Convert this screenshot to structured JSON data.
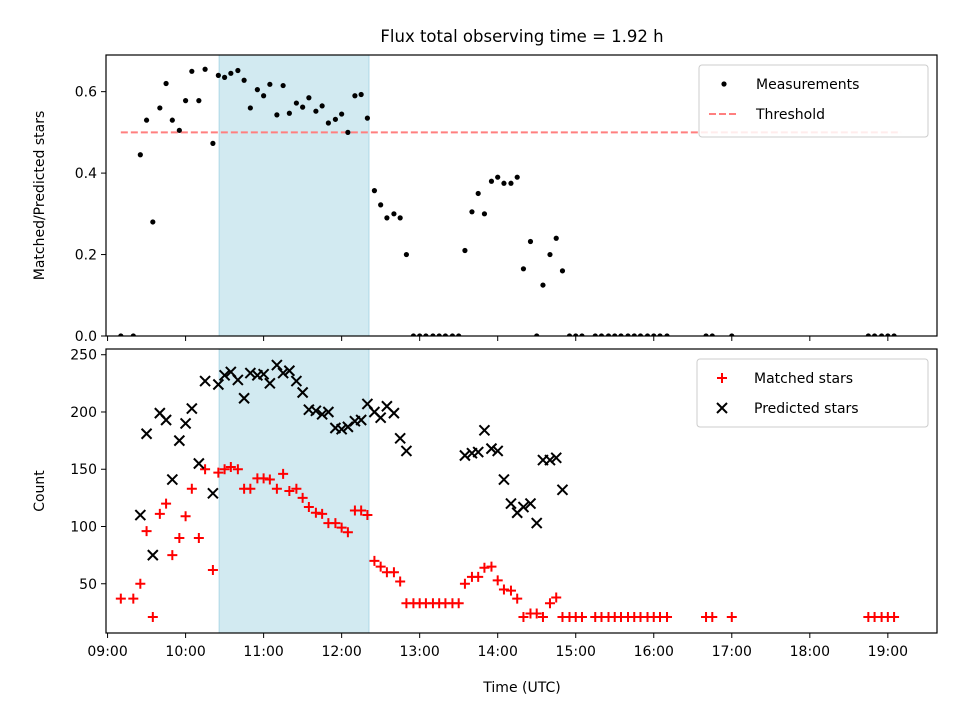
{
  "figure_title": "Flux total observing time = 1.92 h",
  "colors": {
    "span": "#add8e6",
    "measurements": "#000000",
    "threshold": "#ff7f7f",
    "matched": "#ff0000",
    "predicted": "#000000"
  },
  "x_axis": {
    "label": "Time (UTC)",
    "ticks": [
      {
        "t": 9,
        "label": "09:00"
      },
      {
        "t": 10,
        "label": "10:00"
      },
      {
        "t": 11,
        "label": "11:00"
      },
      {
        "t": 12,
        "label": "12:00"
      },
      {
        "t": 13,
        "label": "13:00"
      },
      {
        "t": 14,
        "label": "14:00"
      },
      {
        "t": 15,
        "label": "15:00"
      },
      {
        "t": 16,
        "label": "16:00"
      },
      {
        "t": 17,
        "label": "17:00"
      },
      {
        "t": 18,
        "label": "18:00"
      },
      {
        "t": 19,
        "label": "19:00"
      }
    ],
    "xlim": [
      8.98,
      19.63
    ]
  },
  "highlight_span": {
    "start": 10.43,
    "end": 12.35
  },
  "chart_data": [
    {
      "type": "scatter",
      "ylabel": "Matched/Predicted stars",
      "ylim": [
        0,
        0.69
      ],
      "yticks": [
        0.0,
        0.2,
        0.4,
        0.6
      ],
      "ytick_labels": [
        "0.0",
        "0.2",
        "0.4",
        "0.6"
      ],
      "legend_position": "top-right",
      "threshold": {
        "name": "Threshold",
        "value": 0.5,
        "x_range": [
          9.17,
          19.17
        ]
      },
      "series": [
        {
          "name": "Measurements",
          "points": [
            [
              9.17,
              0.0
            ],
            [
              9.33,
              0.0
            ],
            [
              9.42,
              0.445
            ],
            [
              9.5,
              0.53
            ],
            [
              9.58,
              0.28
            ],
            [
              9.67,
              0.56
            ],
            [
              9.75,
              0.62
            ],
            [
              9.83,
              0.53
            ],
            [
              9.92,
              0.505
            ],
            [
              10.0,
              0.578
            ],
            [
              10.08,
              0.65
            ],
            [
              10.17,
              0.578
            ],
            [
              10.25,
              0.655
            ],
            [
              10.35,
              0.473
            ],
            [
              10.42,
              0.64
            ],
            [
              10.5,
              0.635
            ],
            [
              10.58,
              0.645
            ],
            [
              10.67,
              0.652
            ],
            [
              10.75,
              0.628
            ],
            [
              10.83,
              0.56
            ],
            [
              10.92,
              0.605
            ],
            [
              11.0,
              0.59
            ],
            [
              11.08,
              0.618
            ],
            [
              11.17,
              0.543
            ],
            [
              11.25,
              0.615
            ],
            [
              11.33,
              0.547
            ],
            [
              11.42,
              0.572
            ],
            [
              11.5,
              0.562
            ],
            [
              11.58,
              0.585
            ],
            [
              11.67,
              0.552
            ],
            [
              11.75,
              0.565
            ],
            [
              11.83,
              0.523
            ],
            [
              11.92,
              0.532
            ],
            [
              12.0,
              0.545
            ],
            [
              12.08,
              0.5
            ],
            [
              12.17,
              0.59
            ],
            [
              12.25,
              0.593
            ],
            [
              12.33,
              0.535
            ],
            [
              12.42,
              0.357
            ],
            [
              12.5,
              0.322
            ],
            [
              12.58,
              0.29
            ],
            [
              12.67,
              0.3
            ],
            [
              12.75,
              0.29
            ],
            [
              12.83,
              0.2
            ],
            [
              12.92,
              0.0
            ],
            [
              13.0,
              0.0
            ],
            [
              13.08,
              0.0
            ],
            [
              13.17,
              0.0
            ],
            [
              13.25,
              0.0
            ],
            [
              13.33,
              0.0
            ],
            [
              13.42,
              0.0
            ],
            [
              13.5,
              0.0
            ],
            [
              13.58,
              0.21
            ],
            [
              13.67,
              0.305
            ],
            [
              13.75,
              0.35
            ],
            [
              13.83,
              0.3
            ],
            [
              13.92,
              0.38
            ],
            [
              14.0,
              0.39
            ],
            [
              14.08,
              0.375
            ],
            [
              14.17,
              0.375
            ],
            [
              14.25,
              0.39
            ],
            [
              14.33,
              0.165
            ],
            [
              14.42,
              0.232
            ],
            [
              14.5,
              0.0
            ],
            [
              14.58,
              0.125
            ],
            [
              14.67,
              0.2
            ],
            [
              14.75,
              0.24
            ],
            [
              14.83,
              0.16
            ],
            [
              14.92,
              0.0
            ],
            [
              15.0,
              0.0
            ],
            [
              15.08,
              0.0
            ],
            [
              15.25,
              0.0
            ],
            [
              15.33,
              0.0
            ],
            [
              15.42,
              0.0
            ],
            [
              15.5,
              0.0
            ],
            [
              15.58,
              0.0
            ],
            [
              15.67,
              0.0
            ],
            [
              15.75,
              0.0
            ],
            [
              15.83,
              0.0
            ],
            [
              15.92,
              0.0
            ],
            [
              16.0,
              0.0
            ],
            [
              16.08,
              0.0
            ],
            [
              16.17,
              0.0
            ],
            [
              16.67,
              0.0
            ],
            [
              16.75,
              0.0
            ],
            [
              17.0,
              0.0
            ],
            [
              18.75,
              0.0
            ],
            [
              18.83,
              0.0
            ],
            [
              18.92,
              0.0
            ],
            [
              19.0,
              0.0
            ],
            [
              19.08,
              0.0
            ]
          ]
        }
      ]
    },
    {
      "type": "scatter",
      "ylabel": "Count",
      "ylim": [
        7,
        255
      ],
      "yticks": [
        50,
        100,
        150,
        200,
        250
      ],
      "ytick_labels": [
        "50",
        "100",
        "150",
        "200",
        "250"
      ],
      "legend_position": "top-right",
      "series": [
        {
          "name": "Matched stars",
          "marker": "plus",
          "points": [
            [
              9.17,
              37
            ],
            [
              9.33,
              37
            ],
            [
              9.42,
              50
            ],
            [
              9.5,
              96
            ],
            [
              9.58,
              21
            ],
            [
              9.67,
              111
            ],
            [
              9.75,
              120
            ],
            [
              9.83,
              75
            ],
            [
              9.92,
              90
            ],
            [
              10.0,
              109
            ],
            [
              10.08,
              133
            ],
            [
              10.17,
              90
            ],
            [
              10.25,
              150
            ],
            [
              10.35,
              62
            ],
            [
              10.42,
              147
            ],
            [
              10.5,
              150
            ],
            [
              10.58,
              152
            ],
            [
              10.67,
              150
            ],
            [
              10.75,
              133
            ],
            [
              10.83,
              133
            ],
            [
              10.92,
              142
            ],
            [
              11.0,
              142
            ],
            [
              11.08,
              141
            ],
            [
              11.17,
              133
            ],
            [
              11.25,
              146
            ],
            [
              11.33,
              131
            ],
            [
              11.42,
              133
            ],
            [
              11.5,
              125
            ],
            [
              11.58,
              117
            ],
            [
              11.67,
              112
            ],
            [
              11.75,
              111
            ],
            [
              11.83,
              103
            ],
            [
              11.92,
              103
            ],
            [
              12.0,
              99
            ],
            [
              12.08,
              95
            ],
            [
              12.17,
              114
            ],
            [
              12.25,
              114
            ],
            [
              12.33,
              110
            ],
            [
              12.42,
              70
            ],
            [
              12.5,
              65
            ],
            [
              12.58,
              60
            ],
            [
              12.67,
              60
            ],
            [
              12.75,
              52
            ],
            [
              12.83,
              33
            ],
            [
              12.92,
              33
            ],
            [
              13.0,
              33
            ],
            [
              13.08,
              33
            ],
            [
              13.17,
              33
            ],
            [
              13.25,
              33
            ],
            [
              13.33,
              33
            ],
            [
              13.42,
              33
            ],
            [
              13.5,
              33
            ],
            [
              13.58,
              50
            ],
            [
              13.67,
              56
            ],
            [
              13.75,
              56
            ],
            [
              13.83,
              64
            ],
            [
              13.92,
              65
            ],
            [
              14.0,
              53
            ],
            [
              14.08,
              45
            ],
            [
              14.17,
              44
            ],
            [
              14.25,
              37
            ],
            [
              14.33,
              21
            ],
            [
              14.42,
              24
            ],
            [
              14.5,
              24
            ],
            [
              14.58,
              21
            ],
            [
              14.67,
              33
            ],
            [
              14.75,
              38
            ],
            [
              14.83,
              21
            ],
            [
              14.92,
              21
            ],
            [
              15.0,
              21
            ],
            [
              15.08,
              21
            ],
            [
              15.25,
              21
            ],
            [
              15.33,
              21
            ],
            [
              15.42,
              21
            ],
            [
              15.5,
              21
            ],
            [
              15.58,
              21
            ],
            [
              15.67,
              21
            ],
            [
              15.75,
              21
            ],
            [
              15.83,
              21
            ],
            [
              15.92,
              21
            ],
            [
              16.0,
              21
            ],
            [
              16.08,
              21
            ],
            [
              16.17,
              21
            ],
            [
              16.67,
              21
            ],
            [
              16.75,
              21
            ],
            [
              17.0,
              21
            ],
            [
              18.75,
              21
            ],
            [
              18.83,
              21
            ],
            [
              18.92,
              21
            ],
            [
              19.0,
              21
            ],
            [
              19.08,
              21
            ]
          ]
        },
        {
          "name": "Predicted stars",
          "marker": "cross",
          "points": [
            [
              9.42,
              110
            ],
            [
              9.5,
              181
            ],
            [
              9.58,
              75
            ],
            [
              9.67,
              199
            ],
            [
              9.75,
              193
            ],
            [
              9.83,
              141
            ],
            [
              9.92,
              175
            ],
            [
              10.0,
              190
            ],
            [
              10.08,
              203
            ],
            [
              10.17,
              155
            ],
            [
              10.25,
              227
            ],
            [
              10.35,
              129
            ],
            [
              10.42,
              224
            ],
            [
              10.5,
              232
            ],
            [
              10.58,
              235
            ],
            [
              10.67,
              228
            ],
            [
              10.75,
              212
            ],
            [
              10.83,
              234
            ],
            [
              10.92,
              232
            ],
            [
              11.0,
              233
            ],
            [
              11.08,
              225
            ],
            [
              11.17,
              241
            ],
            [
              11.25,
              234
            ],
            [
              11.33,
              236
            ],
            [
              11.42,
              227
            ],
            [
              11.5,
              217
            ],
            [
              11.58,
              202
            ],
            [
              11.67,
              201
            ],
            [
              11.75,
              198
            ],
            [
              11.83,
              200
            ],
            [
              11.92,
              186
            ],
            [
              12.0,
              185
            ],
            [
              12.08,
              187
            ],
            [
              12.17,
              192
            ],
            [
              12.25,
              193
            ],
            [
              12.33,
              207
            ],
            [
              12.42,
              200
            ],
            [
              12.5,
              195
            ],
            [
              12.58,
              205
            ],
            [
              12.67,
              199
            ],
            [
              12.75,
              177
            ],
            [
              12.83,
              166
            ],
            [
              13.58,
              162
            ],
            [
              13.67,
              164
            ],
            [
              13.75,
              165
            ],
            [
              13.83,
              184
            ],
            [
              13.92,
              168
            ],
            [
              14.0,
              166
            ],
            [
              14.08,
              141
            ],
            [
              14.17,
              120
            ],
            [
              14.25,
              112
            ],
            [
              14.33,
              117
            ],
            [
              14.42,
              120
            ],
            [
              14.5,
              103
            ],
            [
              14.58,
              158
            ],
            [
              14.67,
              158
            ],
            [
              14.75,
              160
            ],
            [
              14.83,
              132
            ]
          ]
        }
      ]
    }
  ]
}
